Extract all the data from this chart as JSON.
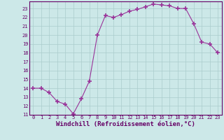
{
  "x": [
    0,
    1,
    2,
    3,
    4,
    5,
    6,
    7,
    8,
    9,
    10,
    11,
    12,
    13,
    14,
    15,
    16,
    17,
    18,
    19,
    20,
    21,
    22,
    23
  ],
  "y": [
    14,
    14,
    13.5,
    12.5,
    12.2,
    11.1,
    12.8,
    14.8,
    20.0,
    22.2,
    22.0,
    22.3,
    22.7,
    22.9,
    23.2,
    23.5,
    23.4,
    23.3,
    23.0,
    23.0,
    21.3,
    19.2,
    19.0,
    18.0
  ],
  "line_color": "#993399",
  "marker": "+",
  "markersize": 4,
  "bg_color": "#cce8e8",
  "grid_color": "#aacccc",
  "xlabel": "Windchill (Refroidissement éolien,°C)",
  "ylim": [
    11,
    23.8
  ],
  "xlim": [
    -0.5,
    23.5
  ],
  "yticks": [
    11,
    12,
    13,
    14,
    15,
    16,
    17,
    18,
    19,
    20,
    21,
    22,
    23
  ],
  "xticks": [
    0,
    1,
    2,
    3,
    4,
    5,
    6,
    7,
    8,
    9,
    10,
    11,
    12,
    13,
    14,
    15,
    16,
    17,
    18,
    19,
    20,
    21,
    22,
    23
  ],
  "tick_fontsize": 5,
  "xlabel_fontsize": 6.5,
  "tick_color": "#660066",
  "xlabel_color": "#660066",
  "spine_color": "#660066"
}
